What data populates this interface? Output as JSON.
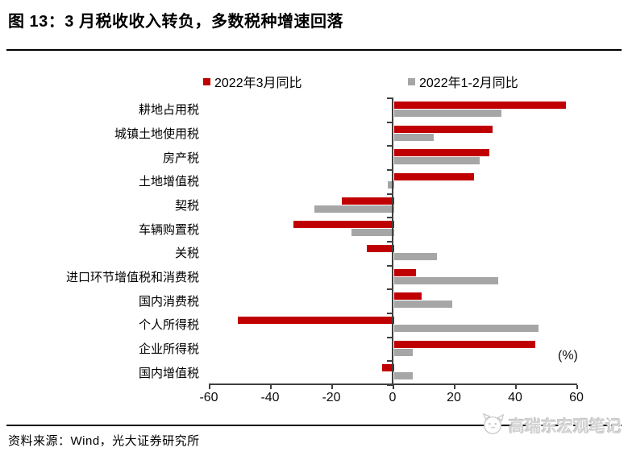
{
  "title": "图 13：3 月税收收入转负，多数税种增速回落",
  "unit_label": "(%)",
  "footer": {
    "source": "资料来源：Wind，光大证券研究所",
    "watermark": "高瑞东宏观笔记"
  },
  "colors": {
    "march_red": "#c00000",
    "janfeb_gray": "#a6a6a6",
    "axis": "#3f3f3f",
    "watermark_gray": "#d4d4d4"
  },
  "chart_data": {
    "type": "bar",
    "orientation": "horizontal",
    "title": "图 13：3 月税收收入转负，多数税种增速回落",
    "xlabel": "(%)",
    "ylabel": "",
    "xlim": [
      -60,
      60
    ],
    "x_ticks": [
      -60,
      -40,
      -20,
      0,
      20,
      40,
      60
    ],
    "grid": false,
    "legend_position": "top",
    "categories": [
      "耕地占用税",
      "城镇土地使用税",
      "房产税",
      "土地增值税",
      "契税",
      "车辆购置税",
      "关税",
      "进口环节增值税和消费税",
      "国内消费税",
      "个人所得税",
      "企业所得税",
      "国内增值税"
    ],
    "series": [
      {
        "name": "2022年3月同比",
        "color": "#c00000",
        "values": [
          56,
          32,
          31,
          26,
          -17,
          -33,
          -9,
          7,
          9,
          -51,
          46,
          -4
        ]
      },
      {
        "name": "2022年1-2月同比",
        "color": "#a6a6a6",
        "values": [
          35,
          13,
          28,
          -2,
          -26,
          -14,
          14,
          34,
          19,
          47,
          6,
          6
        ]
      }
    ]
  }
}
